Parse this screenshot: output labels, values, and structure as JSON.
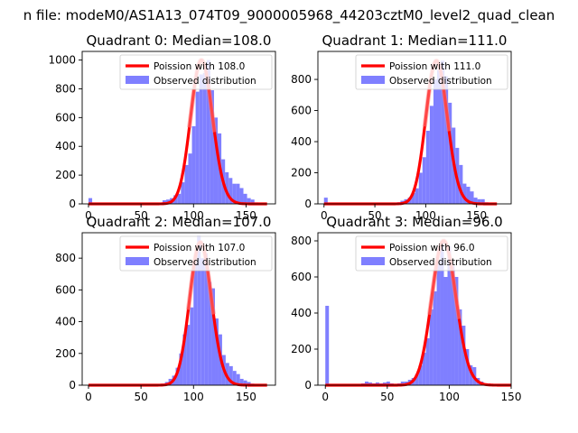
{
  "figure": {
    "suptitle": "n file: modeM0/AS1A13_074T09_9000005968_44203cztM0_level2_quad_clean"
  },
  "colors": {
    "hist": "#7f7fff",
    "poisson": "#ff0000",
    "axis": "#000000",
    "background": "#ffffff"
  },
  "chart_data": [
    {
      "type": "bar",
      "title": "Quadrant 0: Median=108.0",
      "median": 108.0,
      "xlim": [
        -6,
        178
      ],
      "ylim": [
        0,
        1060
      ],
      "xticks": [
        0,
        50,
        100,
        150
      ],
      "yticks": [
        0,
        200,
        400,
        600,
        800,
        1000
      ],
      "bin_width": 3.5,
      "grid": false,
      "legend_location": "top-right",
      "series": [
        {
          "name": "Poission with 108.0",
          "kind": "line",
          "mu": 108.0,
          "peak": 1000
        },
        {
          "name": "Observed distribution",
          "kind": "histogram",
          "bins": [
            [
              0,
              40
            ],
            [
              3.5,
              2
            ],
            [
              67,
              5
            ],
            [
              70.5,
              25
            ],
            [
              74,
              30
            ],
            [
              77.5,
              40
            ],
            [
              81,
              60
            ],
            [
              84.5,
              70
            ],
            [
              88,
              150
            ],
            [
              91.5,
              270
            ],
            [
              95,
              350
            ],
            [
              98.5,
              540
            ],
            [
              102,
              780
            ],
            [
              105.5,
              900
            ],
            [
              109,
              910
            ],
            [
              112.5,
              1000
            ],
            [
              116,
              790
            ],
            [
              119.5,
              600
            ],
            [
              123,
              490
            ],
            [
              126.5,
              310
            ],
            [
              130,
              220
            ],
            [
              133.5,
              180
            ],
            [
              137,
              140
            ],
            [
              140.5,
              140
            ],
            [
              144,
              110
            ],
            [
              147.5,
              70
            ],
            [
              151,
              40
            ],
            [
              154.5,
              30
            ],
            [
              158,
              10
            ],
            [
              161.5,
              5
            ]
          ]
        }
      ]
    },
    {
      "type": "bar",
      "title": "Quadrant 1: Median=111.0",
      "median": 111.0,
      "xlim": [
        -6,
        184
      ],
      "ylim": [
        0,
        980
      ],
      "xticks": [
        0,
        50,
        100,
        150
      ],
      "yticks": [
        0,
        200,
        400,
        600,
        800
      ],
      "bin_width": 3.6,
      "grid": false,
      "legend_location": "top-right",
      "series": [
        {
          "name": "Poission with 111.0",
          "kind": "line",
          "mu": 111.0,
          "peak": 920
        },
        {
          "name": "Observed distribution",
          "kind": "histogram",
          "bins": [
            [
              0,
              40
            ],
            [
              3.6,
              3
            ],
            [
              68,
              5
            ],
            [
              71.6,
              10
            ],
            [
              75.2,
              20
            ],
            [
              78.8,
              30
            ],
            [
              82.4,
              40
            ],
            [
              86,
              70
            ],
            [
              89.6,
              100
            ],
            [
              93.2,
              200
            ],
            [
              96.8,
              300
            ],
            [
              100.4,
              470
            ],
            [
              104,
              630
            ],
            [
              107.6,
              800
            ],
            [
              111.2,
              860
            ],
            [
              114.8,
              920
            ],
            [
              118.4,
              820
            ],
            [
              122,
              650
            ],
            [
              125.6,
              490
            ],
            [
              129.2,
              360
            ],
            [
              132.8,
              250
            ],
            [
              136.4,
              130
            ],
            [
              140,
              110
            ],
            [
              143.6,
              80
            ],
            [
              147.2,
              40
            ],
            [
              150.8,
              30
            ],
            [
              154.4,
              30
            ],
            [
              158,
              10
            ]
          ]
        }
      ]
    },
    {
      "type": "bar",
      "title": "Quadrant 2: Median=107.0",
      "median": 107.0,
      "xlim": [
        -6,
        178
      ],
      "ylim": [
        0,
        960
      ],
      "xticks": [
        0,
        50,
        100,
        150
      ],
      "yticks": [
        0,
        200,
        400,
        600,
        800
      ],
      "bin_width": 3.4,
      "grid": false,
      "legend_location": "top-right",
      "series": [
        {
          "name": "Poission with 107.0",
          "kind": "line",
          "mu": 107.0,
          "peak": 900
        },
        {
          "name": "Observed distribution",
          "kind": "histogram",
          "bins": [
            [
              0,
              2
            ],
            [
              66,
              5
            ],
            [
              69.4,
              10
            ],
            [
              72.8,
              20
            ],
            [
              76.2,
              40
            ],
            [
              79.6,
              60
            ],
            [
              83,
              110
            ],
            [
              86.4,
              200
            ],
            [
              89.8,
              320
            ],
            [
              93.2,
              380
            ],
            [
              96.6,
              490
            ],
            [
              100,
              770
            ],
            [
              103.4,
              940
            ],
            [
              106.8,
              800
            ],
            [
              110.2,
              830
            ],
            [
              113.6,
              650
            ],
            [
              117,
              610
            ],
            [
              120.4,
              420
            ],
            [
              123.8,
              320
            ],
            [
              127.2,
              190
            ],
            [
              130.6,
              140
            ],
            [
              134,
              120
            ],
            [
              137.4,
              90
            ],
            [
              140.8,
              70
            ],
            [
              144.2,
              40
            ],
            [
              147.6,
              30
            ],
            [
              151,
              20
            ],
            [
              154.4,
              10
            ]
          ]
        }
      ]
    },
    {
      "type": "bar",
      "title": "Quadrant 3: Median=96.0",
      "median": 96.0,
      "xlim": [
        -6,
        150
      ],
      "ylim": [
        0,
        845
      ],
      "xticks": [
        0,
        50,
        100,
        150
      ],
      "yticks": [
        0,
        200,
        400,
        600,
        800
      ],
      "bin_width": 2.9,
      "grid": false,
      "legend_location": "top-right",
      "series": [
        {
          "name": "Poission with 96.0",
          "kind": "line",
          "mu": 96.0,
          "peak": 800
        },
        {
          "name": "Observed distribution",
          "kind": "histogram",
          "bins": [
            [
              0,
              440
            ],
            [
              29,
              10
            ],
            [
              31.9,
              20
            ],
            [
              34.8,
              15
            ],
            [
              37.7,
              10
            ],
            [
              40.6,
              15
            ],
            [
              43.5,
              10
            ],
            [
              46.4,
              15
            ],
            [
              49.3,
              20
            ],
            [
              52.2,
              10
            ],
            [
              55.1,
              5
            ],
            [
              58,
              10
            ],
            [
              60.9,
              20
            ],
            [
              63.8,
              20
            ],
            [
              66.7,
              30
            ],
            [
              69.6,
              40
            ],
            [
              72.5,
              60
            ],
            [
              75.4,
              110
            ],
            [
              78.3,
              180
            ],
            [
              81.2,
              260
            ],
            [
              84.1,
              420
            ],
            [
              87,
              520
            ],
            [
              89.9,
              690
            ],
            [
              92.8,
              800
            ],
            [
              95.7,
              600
            ],
            [
              98.6,
              770
            ],
            [
              101.5,
              660
            ],
            [
              104.4,
              600
            ],
            [
              107.3,
              420
            ],
            [
              110.2,
              330
            ],
            [
              113.1,
              200
            ],
            [
              116,
              110
            ],
            [
              118.9,
              100
            ],
            [
              121.8,
              40
            ],
            [
              124.7,
              20
            ],
            [
              127.6,
              10
            ],
            [
              130.5,
              10
            ]
          ]
        }
      ]
    }
  ]
}
